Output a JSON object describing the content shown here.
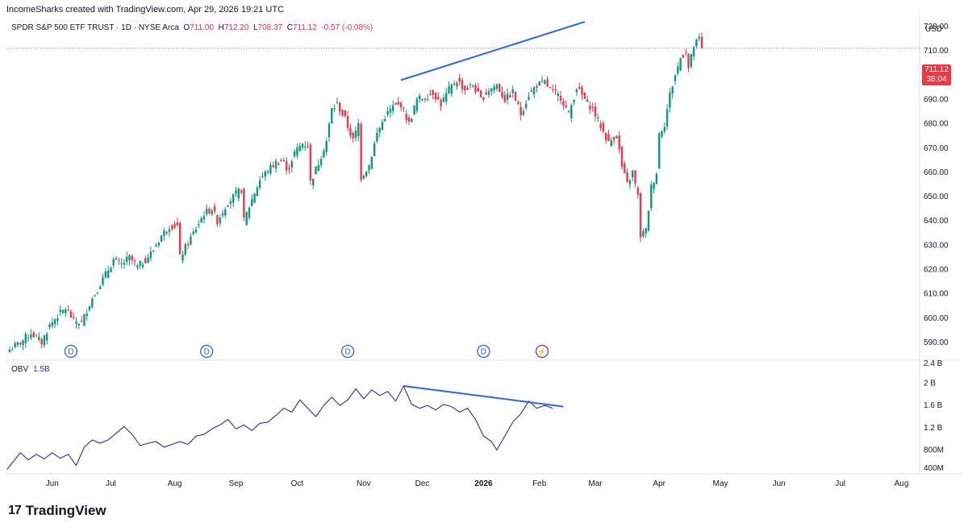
{
  "header": {
    "credit": "IncomeSharks created with TradingView.com, Apr 29, 2026 19:21 UTC"
  },
  "symbol": {
    "name": "SPDR S&P 500 ETF TRUST · 1D · NYSE Arca",
    "o_label": "O",
    "o_value": "711.00",
    "h_label": "H",
    "h_value": "712.20",
    "l_label": "L",
    "l_value": "708.37",
    "c_label": "C",
    "c_value": "711.12",
    "change": "-0.57 (-0.08%)"
  },
  "price_badge": {
    "price": "711.12",
    "countdown": "38:04"
  },
  "currency": "USD",
  "obv_legend": {
    "label": "OBV",
    "value": "1.5B"
  },
  "branding": {
    "logo_mark": "17",
    "logo_text": "TradingView"
  },
  "colors": {
    "up": "#089981",
    "down": "#f23645",
    "trend": "#2962ff",
    "obv": "#2a2e9e",
    "grid": "#e0e3eb"
  },
  "chart_data": [
    {
      "type": "candlestick",
      "title": "SPDR S&P 500 ETF TRUST · 1D · NYSE Arca",
      "ylabel": "USD",
      "ylim": [
        583,
        725
      ],
      "yticks": [
        590,
        600,
        610,
        620,
        630,
        640,
        650,
        660,
        670,
        680,
        690,
        700,
        710,
        720
      ],
      "ytick_labels": [
        "590.00",
        "600.00",
        "610.00",
        "620.00",
        "630.00",
        "640.00",
        "650.00",
        "660.00",
        "670.00",
        "680.00",
        "690.00",
        "700.00",
        "710.00",
        "720.00"
      ],
      "x_labels": [
        "Jun",
        "Jul",
        "Aug",
        "Sep",
        "Oct",
        "Nov",
        "Dec",
        "2026",
        "Feb",
        "Mar",
        "Apr",
        "May",
        "Jun",
        "Jul",
        "Aug"
      ],
      "close_path": [
        [
          0,
          587
        ],
        [
          4,
          590
        ],
        [
          8,
          594
        ],
        [
          12,
          590
        ],
        [
          15,
          597
        ],
        [
          18,
          601
        ],
        [
          21,
          604
        ],
        [
          24,
          599
        ],
        [
          27,
          598
        ],
        [
          30,
          606
        ],
        [
          33,
          612
        ],
        [
          36,
          618
        ],
        [
          39,
          624
        ],
        [
          42,
          622
        ],
        [
          45,
          625
        ],
        [
          48,
          621
        ],
        [
          51,
          624
        ],
        [
          54,
          628
        ],
        [
          57,
          634
        ],
        [
          60,
          638
        ],
        [
          63,
          638
        ],
        [
          64,
          625
        ],
        [
          67,
          631
        ],
        [
          70,
          637
        ],
        [
          73,
          643
        ],
        [
          76,
          645
        ],
        [
          78,
          640
        ],
        [
          81,
          646
        ],
        [
          84,
          650
        ],
        [
          87,
          653
        ],
        [
          88,
          640
        ],
        [
          91,
          649
        ],
        [
          94,
          657
        ],
        [
          97,
          661
        ],
        [
          100,
          664
        ],
        [
          103,
          665
        ],
        [
          104,
          660
        ],
        [
          107,
          668
        ],
        [
          110,
          672
        ],
        [
          112,
          671
        ],
        [
          113,
          656
        ],
        [
          116,
          664
        ],
        [
          119,
          673
        ],
        [
          121,
          686
        ],
        [
          123,
          688
        ],
        [
          126,
          682
        ],
        [
          129,
          673
        ],
        [
          131,
          680
        ],
        [
          132,
          658
        ],
        [
          135,
          663
        ],
        [
          138,
          676
        ],
        [
          141,
          683
        ],
        [
          144,
          687
        ],
        [
          147,
          688
        ],
        [
          150,
          680
        ],
        [
          153,
          690
        ],
        [
          156,
          691
        ],
        [
          159,
          693
        ],
        [
          162,
          688
        ],
        [
          165,
          694
        ],
        [
          168,
          698
        ],
        [
          171,
          694
        ],
        [
          174,
          696
        ],
        [
          177,
          690
        ],
        [
          180,
          694
        ],
        [
          183,
          696
        ],
        [
          186,
          690
        ],
        [
          189,
          693
        ],
        [
          192,
          684
        ],
        [
          195,
          692
        ],
        [
          198,
          696
        ],
        [
          201,
          697
        ],
        [
          204,
          693
        ],
        [
          207,
          691
        ],
        [
          210,
          684
        ],
        [
          213,
          695
        ],
        [
          216,
          690
        ],
        [
          219,
          686
        ],
        [
          222,
          679
        ],
        [
          225,
          672
        ],
        [
          228,
          676
        ],
        [
          230,
          662
        ],
        [
          232,
          655
        ],
        [
          234,
          660
        ],
        [
          236,
          650
        ],
        [
          237,
          634
        ],
        [
          239,
          636
        ],
        [
          241,
          654
        ],
        [
          243,
          660
        ],
        [
          244,
          676
        ],
        [
          246,
          680
        ],
        [
          248,
          692
        ],
        [
          250,
          700
        ],
        [
          252,
          707
        ],
        [
          254,
          710
        ],
        [
          255,
          703
        ],
        [
          257,
          712
        ],
        [
          259,
          715
        ],
        [
          260,
          711.12
        ]
      ],
      "events": [
        {
          "kind": "D",
          "x": 23
        },
        {
          "kind": "D",
          "x": 74
        },
        {
          "kind": "D",
          "x": 127
        },
        {
          "kind": "D",
          "x": 178
        },
        {
          "kind": "lightning",
          "x": 200
        }
      ],
      "trendline": {
        "from": [
          147,
          698
        ],
        "to": [
          216,
          722
        ]
      },
      "last_price": 711.12
    },
    {
      "type": "line",
      "title": "OBV",
      "ylabel": "OBV",
      "ylim": [
        0.4,
        2.4
      ],
      "yticks": [
        0.4,
        0.8,
        1.2,
        1.6,
        2.0,
        2.4
      ],
      "ytick_labels": [
        "400M",
        "800M",
        "1.2 B",
        "1.6 B",
        "2 B",
        "2.4 B"
      ],
      "values_billion": [
        [
          0,
          0.45
        ],
        [
          5,
          0.75
        ],
        [
          8,
          0.62
        ],
        [
          11,
          0.72
        ],
        [
          14,
          0.64
        ],
        [
          17,
          0.75
        ],
        [
          20,
          0.65
        ],
        [
          23,
          0.72
        ],
        [
          26,
          0.52
        ],
        [
          29,
          0.85
        ],
        [
          32,
          0.98
        ],
        [
          35,
          0.92
        ],
        [
          38,
          0.98
        ],
        [
          41,
          1.1
        ],
        [
          44,
          1.22
        ],
        [
          47,
          1.08
        ],
        [
          50,
          0.88
        ],
        [
          53,
          0.92
        ],
        [
          56,
          0.95
        ],
        [
          59,
          0.85
        ],
        [
          62,
          0.9
        ],
        [
          65,
          0.95
        ],
        [
          68,
          0.9
        ],
        [
          71,
          1.05
        ],
        [
          74,
          1.08
        ],
        [
          77,
          1.18
        ],
        [
          80,
          1.25
        ],
        [
          83,
          1.35
        ],
        [
          86,
          1.18
        ],
        [
          89,
          1.25
        ],
        [
          92,
          1.15
        ],
        [
          95,
          1.28
        ],
        [
          98,
          1.3
        ],
        [
          101,
          1.42
        ],
        [
          104,
          1.55
        ],
        [
          107,
          1.48
        ],
        [
          110,
          1.7
        ],
        [
          113,
          1.55
        ],
        [
          116,
          1.4
        ],
        [
          119,
          1.6
        ],
        [
          122,
          1.75
        ],
        [
          125,
          1.6
        ],
        [
          128,
          1.7
        ],
        [
          131,
          1.9
        ],
        [
          134,
          1.72
        ],
        [
          137,
          1.88
        ],
        [
          140,
          1.78
        ],
        [
          143,
          1.85
        ],
        [
          146,
          1.68
        ],
        [
          149,
          1.95
        ],
        [
          152,
          1.62
        ],
        [
          155,
          1.55
        ],
        [
          158,
          1.6
        ],
        [
          161,
          1.52
        ],
        [
          164,
          1.62
        ],
        [
          167,
          1.58
        ],
        [
          170,
          1.48
        ],
        [
          173,
          1.55
        ],
        [
          176,
          1.35
        ],
        [
          179,
          1.05
        ],
        [
          182,
          0.95
        ],
        [
          184,
          0.8
        ],
        [
          187,
          1.05
        ],
        [
          190,
          1.3
        ],
        [
          193,
          1.45
        ],
        [
          196,
          1.68
        ],
        [
          199,
          1.55
        ],
        [
          202,
          1.6
        ],
        [
          205,
          1.55
        ]
      ],
      "trendline": {
        "from": [
          149,
          1.95
        ],
        "to": [
          209,
          1.58
        ]
      },
      "last_value": "1.5B"
    }
  ]
}
